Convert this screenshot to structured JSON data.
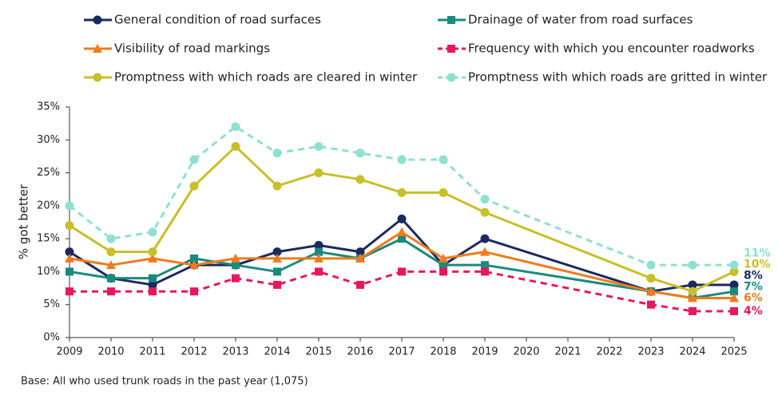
{
  "chart_data": {
    "type": "line",
    "y_label": "% got better",
    "footnote": "Base: All who used trunk roads in the past year (1,075)",
    "x": [
      2009,
      2010,
      2011,
      2012,
      2013,
      2014,
      2015,
      2016,
      2017,
      2018,
      2019,
      2023,
      2024,
      2025
    ],
    "xlim": [
      2009,
      2025
    ],
    "xticks": [
      2009,
      2010,
      2011,
      2012,
      2013,
      2014,
      2015,
      2016,
      2017,
      2018,
      2019,
      2020,
      2021,
      2022,
      2023,
      2024,
      2025
    ],
    "ylim": [
      0,
      35
    ],
    "yticks": [
      {
        "value": 0,
        "label": "0%"
      },
      {
        "value": 5,
        "label": "5%"
      },
      {
        "value": 10,
        "label": "10%"
      },
      {
        "value": 15,
        "label": "15%"
      },
      {
        "value": 20,
        "label": "20%"
      },
      {
        "value": 25,
        "label": "25%"
      },
      {
        "value": 30,
        "label": "30%"
      },
      {
        "value": 35,
        "label": "35%"
      }
    ],
    "grid": false,
    "series": [
      {
        "name": "General condition of road surfaces",
        "color": "#1b2a5e",
        "marker": "circle",
        "dashed": false,
        "values": [
          13,
          9,
          8,
          11,
          11,
          13,
          14,
          13,
          18,
          11,
          15,
          7,
          8,
          8
        ],
        "value_labels": [
          null,
          null,
          null,
          null,
          null,
          null,
          null,
          null,
          null,
          null,
          null,
          null,
          null,
          "8%"
        ]
      },
      {
        "name": "Drainage of water from road surfaces",
        "color": "#1a8a7f",
        "marker": "square",
        "dashed": false,
        "values": [
          10,
          9,
          9,
          12,
          11,
          10,
          13,
          12,
          15,
          11,
          11,
          7,
          6,
          7
        ],
        "value_labels": [
          null,
          null,
          null,
          null,
          null,
          null,
          null,
          null,
          null,
          null,
          null,
          null,
          null,
          "7%"
        ]
      },
      {
        "name": "Visibility of road markings",
        "color": "#f07b1e",
        "marker": "triangle",
        "dashed": false,
        "values": [
          12,
          11,
          12,
          11,
          12,
          12,
          12,
          12,
          16,
          12,
          13,
          7,
          6,
          6
        ],
        "value_labels": [
          null,
          null,
          null,
          null,
          null,
          null,
          null,
          null,
          null,
          null,
          null,
          null,
          null,
          "6%"
        ]
      },
      {
        "name": "Frequency with which you encounter roadworks",
        "color": "#e8185f",
        "marker": "square",
        "dashed": true,
        "values": [
          7,
          7,
          7,
          7,
          9,
          8,
          10,
          8,
          10,
          10,
          10,
          5,
          4,
          4
        ],
        "value_labels": [
          null,
          null,
          null,
          null,
          null,
          null,
          null,
          null,
          null,
          null,
          null,
          null,
          null,
          "4%"
        ]
      },
      {
        "name": "Promptness with which roads are cleared in winter",
        "color": "#c8bf2a",
        "marker": "circle",
        "dashed": false,
        "values": [
          17,
          13,
          13,
          23,
          29,
          23,
          25,
          24,
          22,
          22,
          19,
          9,
          7,
          10
        ],
        "value_labels": [
          null,
          null,
          null,
          null,
          null,
          null,
          null,
          null,
          null,
          null,
          null,
          null,
          null,
          "10%"
        ]
      },
      {
        "name": "Promptness with which roads are gritted in winter",
        "color": "#8fe0d0",
        "marker": "circle",
        "dashed": true,
        "values": [
          20,
          15,
          16,
          27,
          32,
          28,
          29,
          28,
          27,
          27,
          21,
          11,
          11,
          11
        ],
        "value_labels": [
          null,
          null,
          null,
          null,
          null,
          null,
          null,
          null,
          null,
          null,
          null,
          null,
          null,
          "11%"
        ]
      }
    ]
  }
}
